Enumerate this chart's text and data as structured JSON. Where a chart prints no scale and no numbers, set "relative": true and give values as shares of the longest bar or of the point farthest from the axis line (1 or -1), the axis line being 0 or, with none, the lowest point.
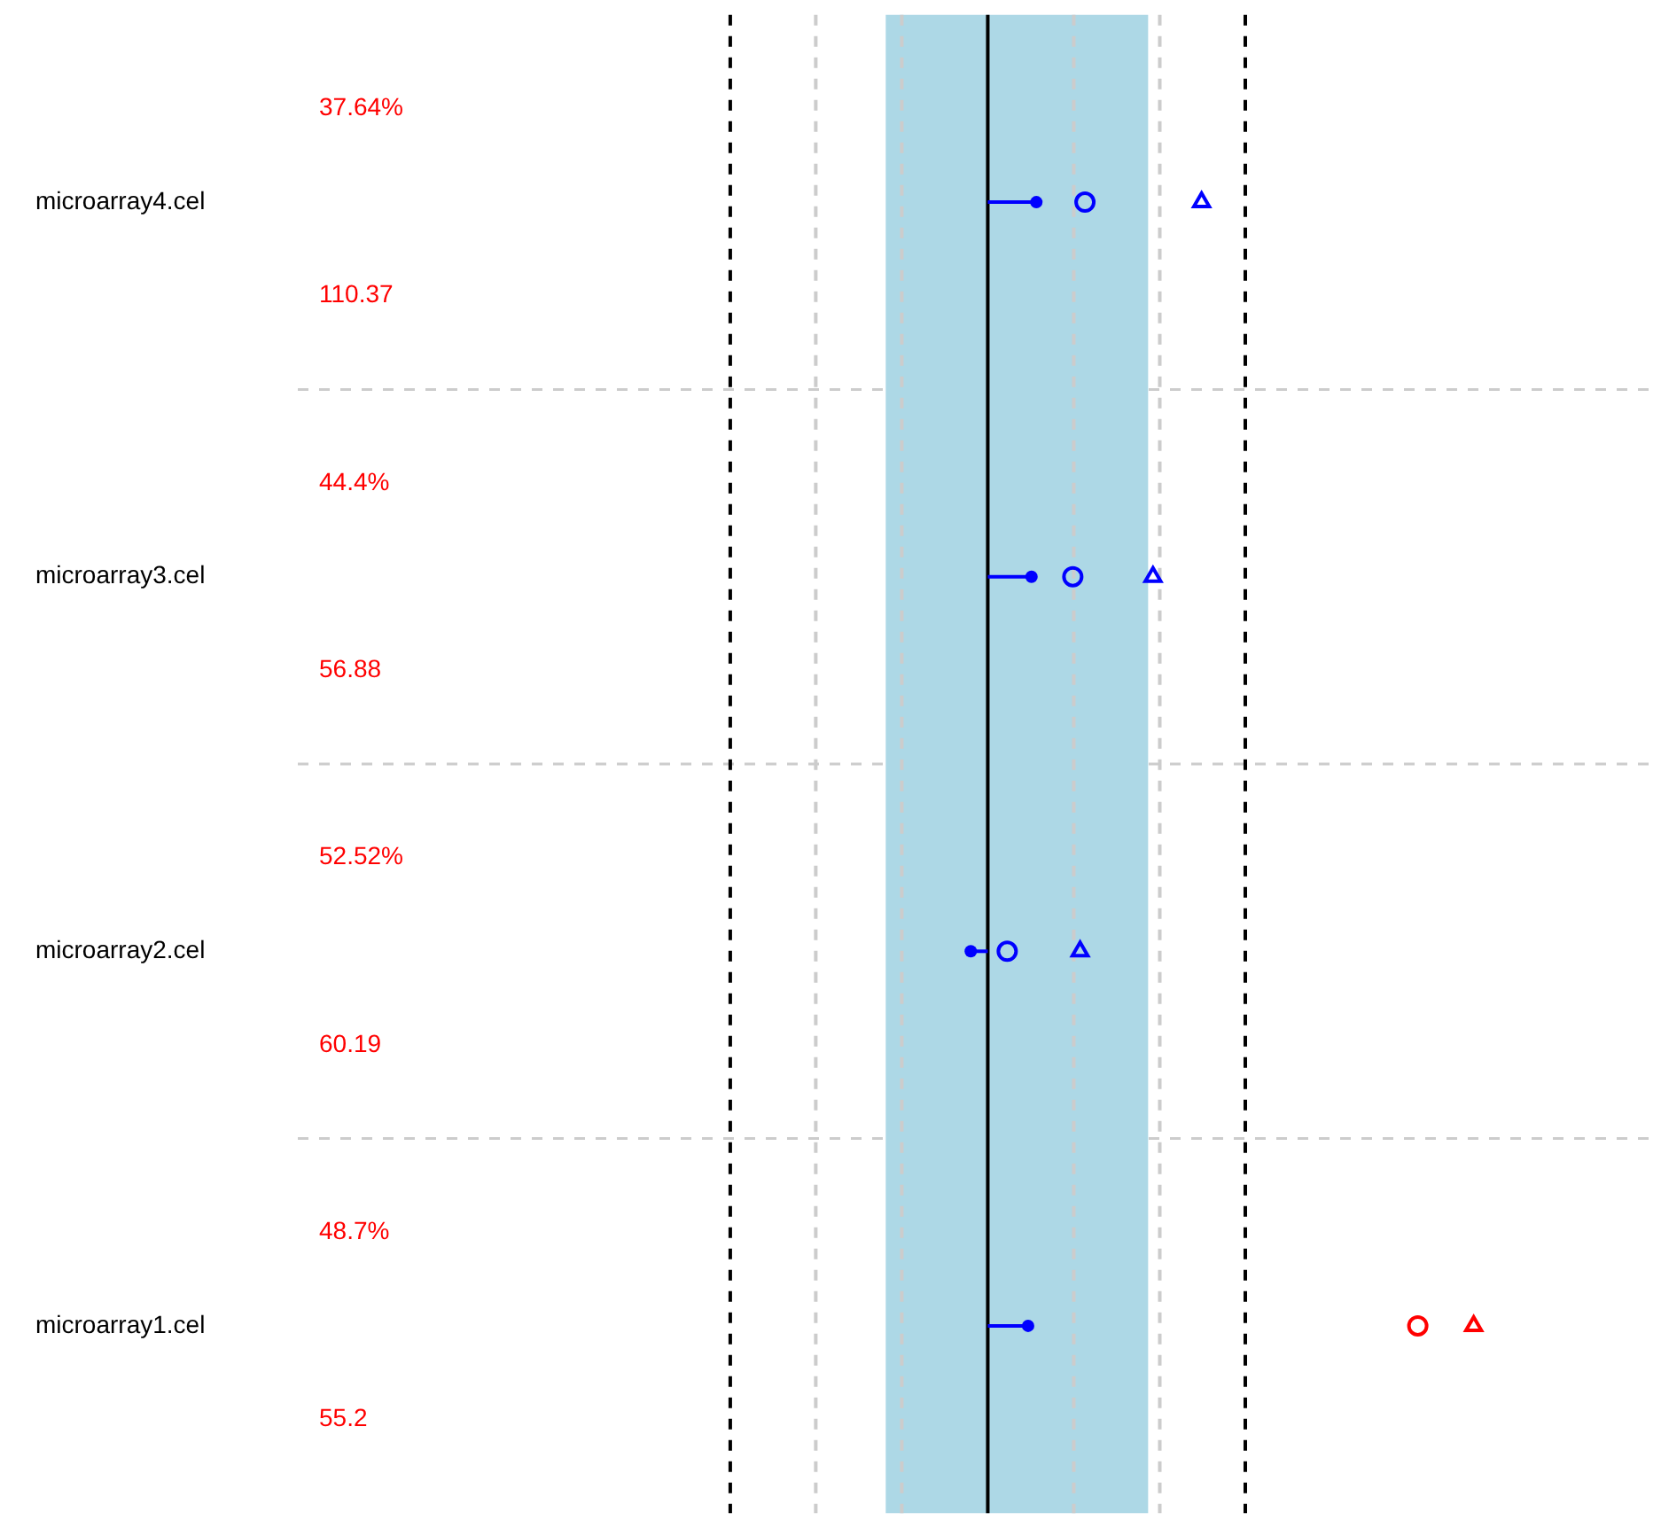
{
  "chart_data": {
    "type": "lollipop",
    "orientation": "horizontal",
    "relative": true,
    "grid": "y",
    "legend": false,
    "categories": [
      "microarray4.cel",
      "microarray3.cel",
      "microarray2.cel",
      "microarray1.cel"
    ],
    "series": [
      {
        "color": "#0000ff",
        "values": [
          0.1,
          0.09,
          -0.035,
          0.083
        ]
      },
      {
        "type": "scatter",
        "marker": "circle",
        "color": "#0000ff",
        "colors": [
          "#0000ff",
          "#0000ff",
          "#0000ff",
          "#ff0000"
        ],
        "values": [
          0.2,
          0.175,
          0.04,
          0.885
        ]
      },
      {
        "type": "scatter",
        "marker": "triangle",
        "color": "#0000ff",
        "colors": [
          "#0000ff",
          "#0000ff",
          "#0000ff",
          "#ff0000"
        ],
        "values": [
          0.44,
          0.34,
          0.19,
          1
        ]
      }
    ],
    "bands": [
      {
        "axis": "x",
        "from": -0.21,
        "to": 0.33,
        "color": "#add8e6"
      }
    ],
    "ref_lines": [
      {
        "axis": "x",
        "value": -0.354,
        "color": "#cccccc",
        "line_style": "dashed"
      },
      {
        "axis": "x",
        "value": -0.177,
        "color": "#cccccc",
        "line_style": "dashed"
      },
      {
        "axis": "x",
        "value": 0.177,
        "color": "#cccccc",
        "line_style": "dashed"
      },
      {
        "axis": "x",
        "value": 0.354,
        "color": "#cccccc",
        "line_style": "dashed"
      },
      {
        "axis": "x",
        "value": -0.53,
        "color": "#000000",
        "line_style": "dashed"
      },
      {
        "axis": "x",
        "value": 0.53,
        "color": "#000000",
        "line_style": "dashed"
      },
      {
        "axis": "x",
        "value": 0,
        "color": "#000000",
        "line_style": "solid"
      }
    ],
    "annotations": [
      "37.64%",
      "110.37",
      "44.4%",
      "56.88",
      "52.52%",
      "60.19",
      "48.7%",
      "55.2"
    ]
  }
}
